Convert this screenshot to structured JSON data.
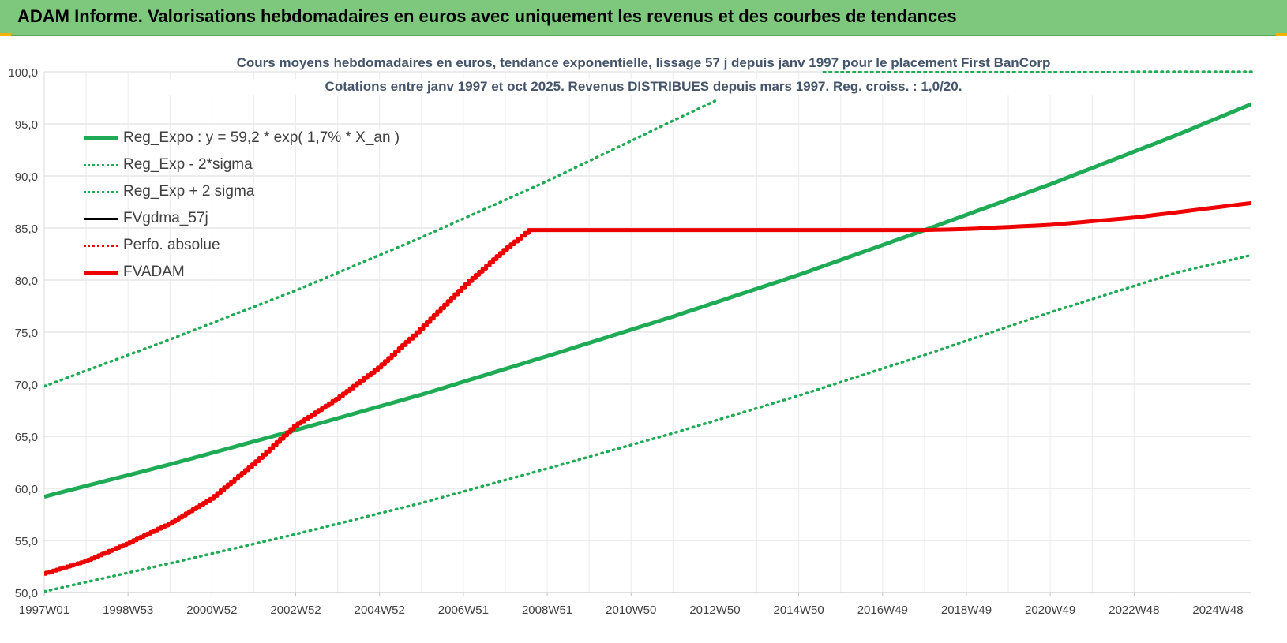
{
  "banner": {
    "title": "ADAM Informe. Valorisations hebdomadaires en euros avec uniquement les revenus et des courbes de tendances"
  },
  "colors": {
    "banner_bg": "#7dc87d",
    "reg_green": "#1faa55",
    "fvadam_red": "#ee0000",
    "black": "#000000",
    "grid": "#d9d9d9"
  },
  "chart_data": {
    "type": "line",
    "title": "Cours moyens hebdomadaires en euros, tendance exponentielle, lissage 57 j depuis janv 1997 pour le placement First BanCorp",
    "subtitle": "Cotations entre janv 1997 et oct 2025. Revenus DISTRIBUES depuis mars 1997. Reg. croiss. : 1,0/20.",
    "xlabel": "",
    "ylabel": "",
    "x_range": [
      1997.0,
      2025.8
    ],
    "ylim": [
      50,
      100
    ],
    "yticks": [
      "50,0",
      "55,0",
      "60,0",
      "65,0",
      "70,0",
      "75,0",
      "80,0",
      "85,0",
      "90,0",
      "95,0",
      "100,0"
    ],
    "xticks": [
      {
        "label": "1997W01",
        "x": 1997.0
      },
      {
        "label": "1998W53",
        "x": 1999.0
      },
      {
        "label": "2000W52",
        "x": 2001.0
      },
      {
        "label": "2002W52",
        "x": 2003.0
      },
      {
        "label": "2004W52",
        "x": 2005.0
      },
      {
        "label": "2006W51",
        "x": 2007.0
      },
      {
        "label": "2008W51",
        "x": 2009.0
      },
      {
        "label": "2010W50",
        "x": 2011.0
      },
      {
        "label": "2012W50",
        "x": 2013.0
      },
      {
        "label": "2014W50",
        "x": 2015.0
      },
      {
        "label": "2016W49",
        "x": 2017.0
      },
      {
        "label": "2018W49",
        "x": 2019.0
      },
      {
        "label": "2020W49",
        "x": 2021.0
      },
      {
        "label": "2022W48",
        "x": 2023.0
      },
      {
        "label": "2024W48",
        "x": 2025.0
      }
    ],
    "grid": true,
    "legend_position": "top-left",
    "series": [
      {
        "name": "Reg_Expo : y = 59,2 * exp( 1,7% *  X_an )",
        "style": "solid-green-thick",
        "x": [
          1997.0,
          2000.0,
          2003.0,
          2006.0,
          2009.0,
          2012.0,
          2015.0,
          2018.0,
          2021.0,
          2024.0,
          2025.8
        ],
        "y": [
          59.2,
          62.3,
          65.6,
          69.0,
          72.7,
          76.5,
          80.5,
          84.8,
          89.2,
          93.9,
          96.9
        ]
      },
      {
        "name": "Reg_Exp - 2*sigma",
        "style": "dotted-green",
        "x": [
          1997.0,
          2000.0,
          2003.0,
          2006.0,
          2009.0,
          2012.0,
          2015.0,
          2018.0,
          2021.0,
          2024.0,
          2025.8
        ],
        "y": [
          50.1,
          52.8,
          55.6,
          58.6,
          61.9,
          65.3,
          68.9,
          72.8,
          76.9,
          80.7,
          82.4
        ]
      },
      {
        "name": "Reg_Exp + 2 sigma",
        "style": "dotted-green",
        "x": [
          1997.0,
          2000.0,
          2003.0,
          2006.0,
          2009.0,
          2012.0,
          2013.0
        ],
        "y": [
          69.8,
          74.3,
          79.0,
          84.1,
          89.5,
          95.3,
          97.2
        ]
      },
      {
        "name": "FVgdma_57j",
        "style": "solid-black",
        "x": [],
        "y": []
      },
      {
        "name": "Perfo. absolue",
        "style": "dotted-red",
        "x": [],
        "y": []
      },
      {
        "name": "FVADAM",
        "style": "solid-red-thick",
        "x": [
          1997.0,
          1998.0,
          1999.0,
          2000.0,
          2001.0,
          2002.0,
          2003.0,
          2004.0,
          2005.0,
          2006.0,
          2007.0,
          2008.0,
          2008.6,
          2009.0,
          2012.0,
          2015.0,
          2018.0,
          2019.0,
          2021.0,
          2023.0,
          2025.8
        ],
        "y": [
          51.8,
          53.0,
          54.7,
          56.6,
          59.0,
          62.3,
          66.0,
          68.6,
          71.6,
          75.3,
          79.3,
          82.9,
          84.8,
          84.8,
          84.8,
          84.8,
          84.8,
          84.9,
          85.3,
          86.0,
          87.4
        ]
      }
    ]
  }
}
